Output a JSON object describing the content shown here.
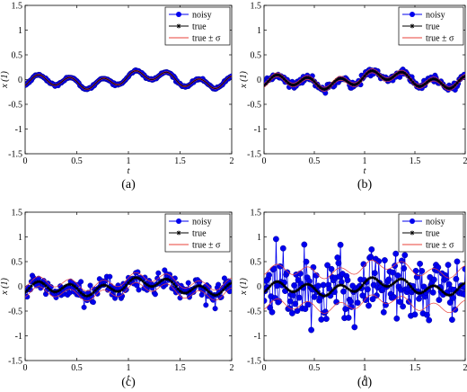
{
  "figure": {
    "captions": [
      "(a)",
      "(b)",
      "(c)",
      "(d)"
    ]
  },
  "legend": {
    "noisy": "noisy",
    "true": "true",
    "band": "true ± σ"
  },
  "colors": {
    "noisy": "#0000ee",
    "true": "#000000",
    "band": "#e8403a"
  },
  "chart_data": [
    {
      "type": "line",
      "caption": "(a)",
      "xlabel": "t",
      "ylabel": "x (1)",
      "xlim": [
        0,
        2
      ],
      "ylim": [
        -1.5,
        1.5
      ],
      "xticks": [
        0,
        0.5,
        1,
        1.5,
        2
      ],
      "yticks": [
        -1.5,
        -1,
        -0.5,
        0,
        0.5,
        1,
        1.5
      ],
      "legend_position": "top-right",
      "grid": false,
      "noise_sigma": 0.01,
      "series": [
        {
          "name": "noisy",
          "style": "blue line with filled circle markers"
        },
        {
          "name": "true",
          "style": "black line with star markers"
        },
        {
          "name": "true ± σ",
          "style": "red thin lines"
        }
      ]
    },
    {
      "type": "line",
      "caption": "(b)",
      "xlabel": "t",
      "ylabel": "x (1)",
      "xlim": [
        0,
        2
      ],
      "ylim": [
        -1.5,
        1.5
      ],
      "xticks": [
        0,
        0.5,
        1,
        1.5,
        2
      ],
      "yticks": [
        -1.5,
        -1,
        -0.5,
        0,
        0.5,
        1,
        1.5
      ],
      "legend_position": "top-right",
      "grid": false,
      "noise_sigma": 0.04,
      "series": [
        {
          "name": "noisy",
          "style": "blue line with filled circle markers"
        },
        {
          "name": "true",
          "style": "black line with star markers"
        },
        {
          "name": "true ± σ",
          "style": "red thin lines"
        }
      ]
    },
    {
      "type": "line",
      "caption": "(c)",
      "xlabel": "t",
      "ylabel": "x (1)",
      "xlim": [
        0,
        2
      ],
      "ylim": [
        -1.5,
        1.5
      ],
      "xticks": [
        0,
        0.5,
        1,
        1.5,
        2
      ],
      "yticks": [
        -1.5,
        -1,
        -0.5,
        0,
        0.5,
        1,
        1.5
      ],
      "legend_position": "top-right",
      "grid": false,
      "noise_sigma": 0.1,
      "series": [
        {
          "name": "noisy",
          "style": "blue line with filled circle markers"
        },
        {
          "name": "true",
          "style": "black line with star markers"
        },
        {
          "name": "true ± σ",
          "style": "red thin lines"
        }
      ]
    },
    {
      "type": "line",
      "caption": "(d)",
      "xlabel": "t",
      "ylabel": "x (1)",
      "xlim": [
        0,
        2
      ],
      "ylim": [
        -1.5,
        1.5
      ],
      "xticks": [
        0,
        0.5,
        1,
        1.5,
        2
      ],
      "yticks": [
        -1.5,
        -1,
        -0.5,
        0,
        0.5,
        1,
        1.5
      ],
      "legend_position": "top-right",
      "grid": false,
      "noise_sigma": 0.35,
      "series": [
        {
          "name": "noisy",
          "style": "blue line with filled circle markers"
        },
        {
          "name": "true",
          "style": "black line with star markers"
        },
        {
          "name": "true ± σ",
          "style": "red thin lines"
        }
      ]
    }
  ]
}
